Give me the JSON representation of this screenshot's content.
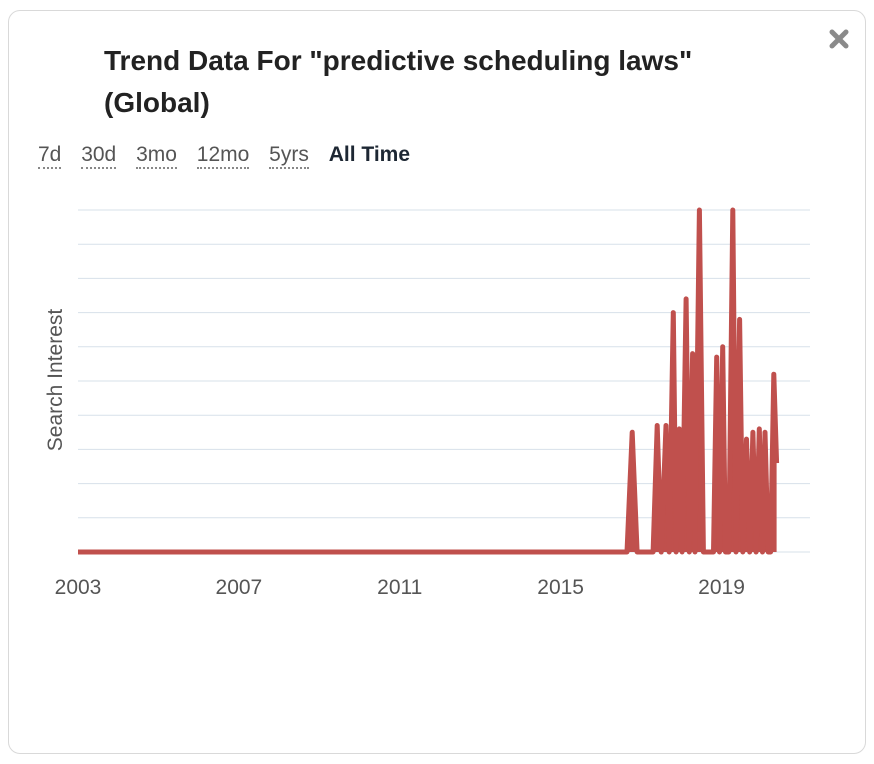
{
  "title": "Trend Data For \"predictive scheduling laws\" (Global)",
  "ranges": [
    "7d",
    "30d",
    "3mo",
    "12mo",
    "5yrs",
    "All Time"
  ],
  "active_range": "All Time",
  "colors": {
    "line": "#c0504d",
    "grid": "#d7e1ea",
    "axis_text": "#555555"
  },
  "icons": {
    "close": "close-icon"
  },
  "chart_data": {
    "type": "area",
    "title": "Trend Data For \"predictive scheduling laws\" (Global)",
    "xlabel": "",
    "ylabel": "Search Interest",
    "x_ticks": [
      "2003",
      "2007",
      "2011",
      "2015",
      "2019"
    ],
    "xlim": [
      2003.0,
      2021.2
    ],
    "ylim": [
      0,
      100
    ],
    "grid": true,
    "series": [
      {
        "values": [
          [
            2003.0,
            0
          ],
          [
            2016.65,
            0
          ],
          [
            2016.78,
            35
          ],
          [
            2016.9,
            0
          ],
          [
            2017.3,
            0
          ],
          [
            2017.4,
            37
          ],
          [
            2017.5,
            0
          ],
          [
            2017.62,
            37
          ],
          [
            2017.7,
            0
          ],
          [
            2017.8,
            70
          ],
          [
            2017.87,
            0
          ],
          [
            2017.95,
            36
          ],
          [
            2018.02,
            0
          ],
          [
            2018.12,
            74
          ],
          [
            2018.2,
            0
          ],
          [
            2018.28,
            58
          ],
          [
            2018.34,
            0
          ],
          [
            2018.45,
            100
          ],
          [
            2018.55,
            0
          ],
          [
            2018.8,
            0
          ],
          [
            2018.88,
            57
          ],
          [
            2018.95,
            0
          ],
          [
            2019.03,
            60
          ],
          [
            2019.1,
            0
          ],
          [
            2019.18,
            0
          ],
          [
            2019.28,
            100
          ],
          [
            2019.36,
            0
          ],
          [
            2019.45,
            68
          ],
          [
            2019.53,
            0
          ],
          [
            2019.62,
            33
          ],
          [
            2019.7,
            0
          ],
          [
            2019.78,
            35
          ],
          [
            2019.86,
            0
          ],
          [
            2019.94,
            36
          ],
          [
            2020.02,
            0
          ],
          [
            2020.08,
            35
          ],
          [
            2020.16,
            0
          ],
          [
            2020.22,
            0
          ],
          [
            2020.3,
            52
          ],
          [
            2020.37,
            26
          ]
        ]
      }
    ]
  }
}
